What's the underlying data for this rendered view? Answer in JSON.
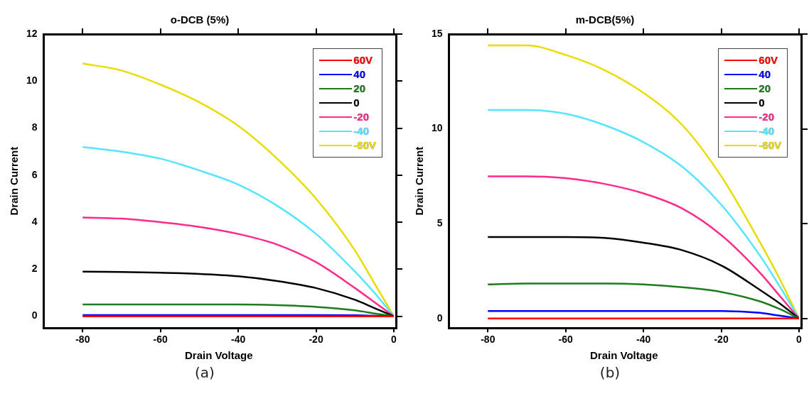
{
  "chart_data": [
    {
      "type": "line",
      "title": "o-DCB (5%)",
      "xlabel": "Drain Voltage",
      "ylabel": "Drain Current",
      "annotations": [
        "(a)"
      ],
      "x": [
        -80,
        -70,
        -60,
        -50,
        -40,
        -30,
        -20,
        -10,
        -5,
        0
      ],
      "xlim": [
        -90,
        0
      ],
      "xticks": [
        -80,
        -60,
        -40,
        -20,
        0
      ],
      "ylim": [
        -0.5,
        12
      ],
      "yticks": [
        0,
        2,
        4,
        6,
        8,
        10,
        12
      ],
      "legend": "top right",
      "grid": false,
      "marker": "none",
      "series": [
        {
          "name": "60V",
          "color": "#ff0000",
          "values": [
            0,
            0,
            0,
            0,
            0,
            0,
            0,
            0,
            0,
            0
          ]
        },
        {
          "name": "40",
          "color": "#0000ff",
          "values": [
            0.05,
            0.05,
            0.05,
            0.05,
            0.05,
            0.05,
            0.05,
            0.04,
            0.02,
            0
          ]
        },
        {
          "name": "20",
          "color": "#1e7b1e",
          "values": [
            0.5,
            0.5,
            0.5,
            0.5,
            0.5,
            0.47,
            0.4,
            0.25,
            0.12,
            0
          ]
        },
        {
          "name": "0",
          "color": "#000000",
          "values": [
            1.9,
            1.88,
            1.85,
            1.8,
            1.7,
            1.5,
            1.2,
            0.7,
            0.35,
            0
          ]
        },
        {
          "name": "-20",
          "color": "#ff2a8a",
          "values": [
            4.2,
            4.15,
            4.0,
            3.8,
            3.5,
            3.05,
            2.3,
            1.2,
            0.6,
            0
          ]
        },
        {
          "name": "-40",
          "color": "#55e6ff",
          "values": [
            7.2,
            7.0,
            6.7,
            6.2,
            5.6,
            4.7,
            3.5,
            1.9,
            1.0,
            0
          ]
        },
        {
          "name": "-60V",
          "color": "#e8dc00",
          "values": [
            10.75,
            10.45,
            9.85,
            9.1,
            8.1,
            6.7,
            5.0,
            2.8,
            1.4,
            0
          ]
        }
      ]
    },
    {
      "type": "line",
      "title": "m-DCB(5%)",
      "xlabel": "Drain Voltage",
      "ylabel": "Drain Current",
      "annotations": [
        "(b)"
      ],
      "x": [
        -80,
        -70,
        -60,
        -50,
        -40,
        -30,
        -20,
        -10,
        -5,
        0
      ],
      "xlim": [
        -90,
        0
      ],
      "xticks": [
        -80,
        -60,
        -40,
        -20,
        0
      ],
      "ylim": [
        -0.5,
        15
      ],
      "yticks": [
        0,
        5,
        10,
        15
      ],
      "legend": "top right",
      "grid": false,
      "marker": "none",
      "series": [
        {
          "name": "60V",
          "color": "#ff0000",
          "values": [
            0,
            0,
            0,
            0,
            0,
            0,
            0,
            0,
            0,
            0
          ]
        },
        {
          "name": "40",
          "color": "#0000ff",
          "values": [
            0.4,
            0.4,
            0.4,
            0.4,
            0.4,
            0.4,
            0.4,
            0.3,
            0.15,
            0
          ]
        },
        {
          "name": "20",
          "color": "#1e7b1e",
          "values": [
            1.8,
            1.85,
            1.85,
            1.85,
            1.8,
            1.65,
            1.4,
            0.9,
            0.5,
            0
          ]
        },
        {
          "name": "0",
          "color": "#000000",
          "values": [
            4.3,
            4.3,
            4.3,
            4.25,
            4.0,
            3.6,
            2.8,
            1.5,
            0.8,
            0
          ]
        },
        {
          "name": "-20",
          "color": "#ff2a8a",
          "values": [
            7.5,
            7.5,
            7.4,
            7.1,
            6.6,
            5.8,
            4.4,
            2.4,
            1.2,
            0
          ]
        },
        {
          "name": "-40",
          "color": "#55e6ff",
          "values": [
            11.0,
            11.0,
            10.8,
            10.2,
            9.3,
            8.0,
            6.0,
            3.3,
            1.7,
            0
          ]
        },
        {
          "name": "-60V",
          "color": "#e8dc00",
          "values": [
            14.4,
            14.4,
            13.9,
            13.1,
            11.9,
            10.2,
            7.5,
            4.0,
            2.1,
            0
          ]
        }
      ]
    }
  ]
}
